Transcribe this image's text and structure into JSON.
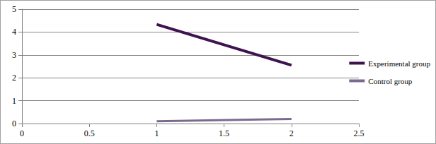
{
  "chart_data": {
    "type": "line",
    "x": [
      1,
      2
    ],
    "series": [
      {
        "name": "Experimental group",
        "color": "#3d1350",
        "values": [
          4.33,
          2.55
        ]
      },
      {
        "name": "Control group",
        "color": "#7b6a8e",
        "values": [
          0.1,
          0.2
        ]
      }
    ],
    "xlim": [
      0,
      2.5
    ],
    "xticks": [
      0,
      0.5,
      1,
      1.5,
      2,
      2.5
    ],
    "ylim": [
      0,
      5
    ],
    "yticks": [
      0,
      1,
      2,
      3,
      4,
      5
    ],
    "grid": true,
    "legend": "right",
    "marker": "none"
  }
}
